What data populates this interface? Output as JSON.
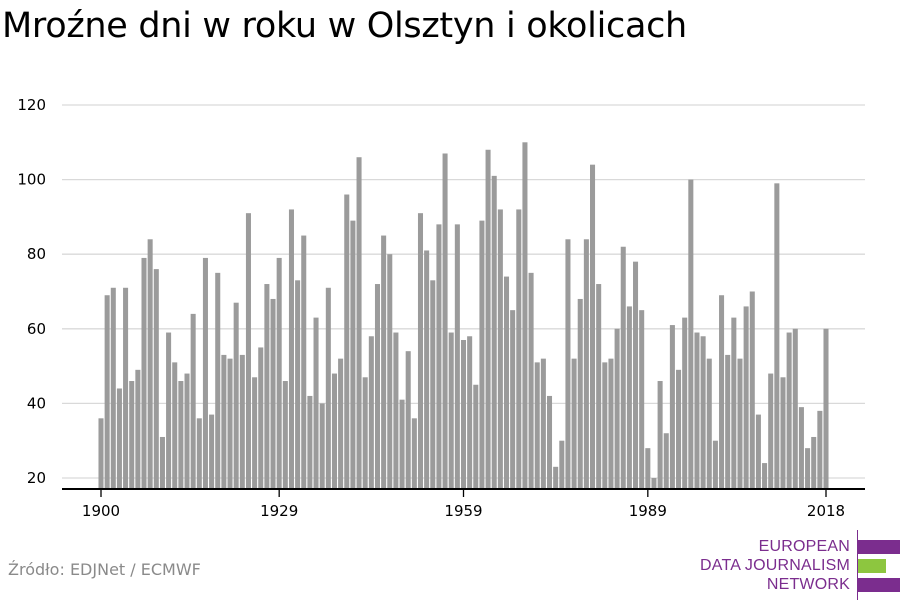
{
  "title": "Mroźne dni w roku w Olsztyn i okolicach",
  "source": "Źródło: EDJNet / ECMWF",
  "logo": {
    "lines": [
      "EUROPEAN",
      "DATA JOURNALISM",
      "NETWORK"
    ],
    "colors": {
      "purple": "#7b2d8e",
      "green": "#8dc63f"
    }
  },
  "colors": {
    "bar": "#9b9b9b",
    "grid": "#d9d9d9",
    "axis": "#000000"
  },
  "chart_data": {
    "type": "bar",
    "title": "Mroźne dni w roku w Olsztyn i okolicach",
    "xlabel": "",
    "ylabel": "",
    "ylim": [
      20,
      120
    ],
    "yticks": [
      20,
      40,
      60,
      80,
      100,
      120
    ],
    "xticks": [
      1900,
      1929,
      1959,
      1989,
      2018
    ],
    "grid": true,
    "x_start": 1900,
    "x_end": 2018,
    "values": [
      36,
      69,
      71,
      44,
      71,
      46,
      49,
      79,
      84,
      76,
      31,
      59,
      51,
      46,
      48,
      64,
      36,
      79,
      37,
      75,
      53,
      52,
      67,
      53,
      91,
      47,
      55,
      72,
      68,
      79,
      46,
      92,
      73,
      85,
      42,
      63,
      40,
      71,
      48,
      52,
      96,
      89,
      106,
      47,
      58,
      72,
      85,
      80,
      59,
      41,
      54,
      36,
      91,
      81,
      73,
      88,
      107,
      59,
      88,
      57,
      58,
      45,
      89,
      108,
      101,
      92,
      74,
      65,
      92,
      110,
      75,
      51,
      52,
      42,
      23,
      30,
      84,
      52,
      68,
      84,
      104,
      72,
      51,
      52,
      60,
      82,
      66,
      78,
      65,
      28,
      20,
      46,
      32,
      61,
      49,
      63,
      100,
      59,
      58,
      52,
      30,
      69,
      53,
      63,
      52,
      66,
      70,
      37,
      24,
      48,
      99,
      47,
      59,
      60,
      39,
      28,
      31,
      38,
      60
    ]
  }
}
